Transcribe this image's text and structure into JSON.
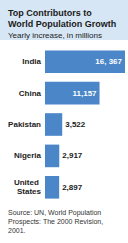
{
  "chart_data": {
    "type": "bar",
    "orientation": "horizontal",
    "title": "Top Contributors to World Population Growth",
    "subtitle": "Yearly increase, in millions",
    "source": "Source: UN, World Population Prospects: The 2000 Revision, 2001.",
    "categories": [
      "India",
      "China",
      "Pakistan",
      "Nigeria",
      "United States"
    ],
    "values": [
      16367,
      11157,
      3522,
      2917,
      2897
    ],
    "value_labels": [
      "16, 367",
      "11,157",
      "3,522",
      "2,917",
      "2,897"
    ],
    "color": "#4a86c8",
    "xlim": [
      0,
      16367
    ],
    "data_labels": true,
    "tick_labels": "y",
    "grid": false
  }
}
